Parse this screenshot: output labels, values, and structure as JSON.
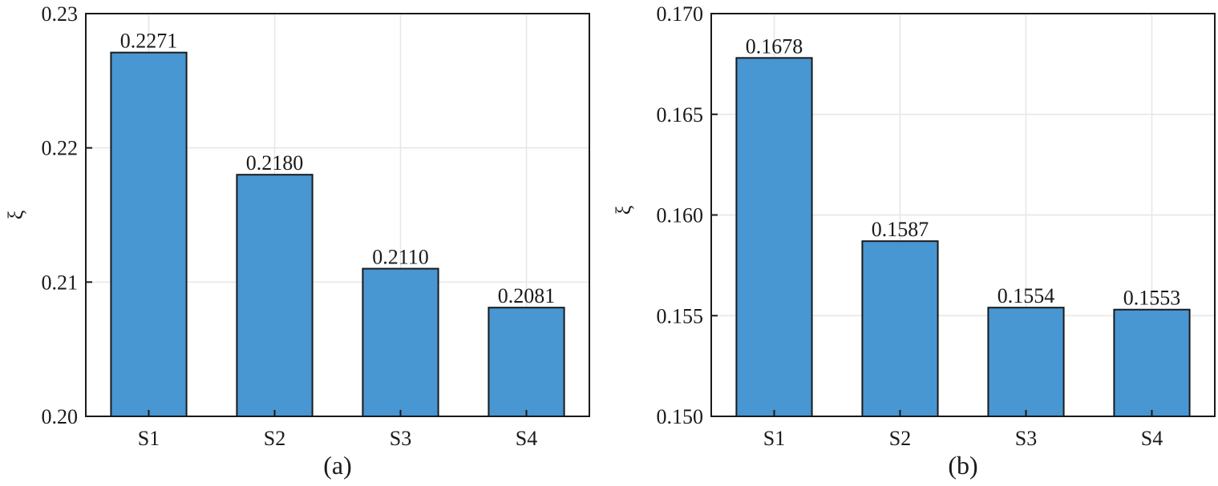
{
  "colors": {
    "bar_fill": "#4896d2",
    "axis": "#1a1a1a",
    "grid": "#e6e6e6"
  },
  "chart_data": [
    {
      "type": "bar",
      "caption": "(a)",
      "ylabel": "ξ",
      "xlabel": "",
      "categories": [
        "S1",
        "S2",
        "S3",
        "S4"
      ],
      "values": [
        0.2271,
        0.218,
        0.211,
        0.2081
      ],
      "value_labels": [
        "0.2271",
        "0.2180",
        "0.2110",
        "0.2081"
      ],
      "ylim": [
        0.2,
        0.23
      ],
      "yticks": [
        0.2,
        0.21,
        0.22,
        0.23
      ],
      "ytick_labels": [
        "0.20",
        "0.21",
        "0.22",
        "0.23"
      ],
      "grid": true,
      "legend": "none"
    },
    {
      "type": "bar",
      "caption": "(b)",
      "ylabel": "ξ",
      "xlabel": "",
      "categories": [
        "S1",
        "S2",
        "S3",
        "S4"
      ],
      "values": [
        0.1678,
        0.1587,
        0.1554,
        0.1553
      ],
      "value_labels": [
        "0.1678",
        "0.1587",
        "0.1554",
        "0.1553"
      ],
      "ylim": [
        0.15,
        0.17
      ],
      "yticks": [
        0.15,
        0.155,
        0.16,
        0.165,
        0.17
      ],
      "ytick_labels": [
        "0.150",
        "0.155",
        "0.160",
        "0.165",
        "0.170"
      ],
      "grid": true,
      "legend": "none"
    }
  ]
}
